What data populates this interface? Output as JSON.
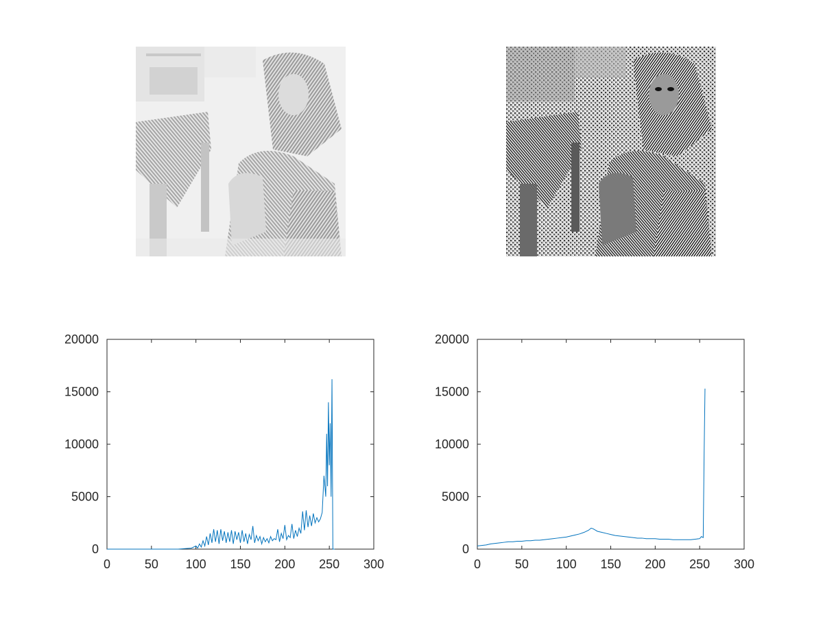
{
  "images": [
    {
      "name": "original-grayscale-photo",
      "description_visible": ""
    },
    {
      "name": "processed-edge-enhanced-photo",
      "description_visible": ""
    }
  ],
  "colors": {
    "line": "#0072bd",
    "axis": "#262626",
    "background": "#ffffff"
  },
  "chart_data": [
    {
      "type": "line",
      "title": "",
      "xlabel": "",
      "ylabel": "",
      "xlim": [
        0,
        300
      ],
      "ylim": [
        0,
        20000
      ],
      "x_ticks": [
        0,
        50,
        100,
        150,
        200,
        250,
        300
      ],
      "y_ticks": [
        0,
        5000,
        10000,
        15000,
        20000
      ],
      "x_tick_labels": [
        "0",
        "50",
        "100",
        "150",
        "200",
        "250",
        "300"
      ],
      "y_tick_labels": [
        "0",
        "5000",
        "10000",
        "15000",
        "20000"
      ],
      "grid": false,
      "series": [
        {
          "x": [
            0,
            80,
            95,
            100,
            102,
            104,
            106,
            108,
            110,
            112,
            114,
            116,
            118,
            120,
            122,
            124,
            126,
            128,
            130,
            132,
            134,
            136,
            138,
            140,
            142,
            144,
            146,
            148,
            150,
            152,
            154,
            156,
            158,
            160,
            162,
            164,
            166,
            168,
            170,
            172,
            174,
            176,
            178,
            180,
            182,
            184,
            186,
            188,
            190,
            192,
            194,
            196,
            198,
            200,
            202,
            204,
            206,
            208,
            210,
            212,
            214,
            216,
            218,
            220,
            222,
            224,
            226,
            228,
            230,
            232,
            234,
            236,
            238,
            240,
            242,
            244,
            246,
            247,
            248,
            249,
            250,
            251,
            252,
            253,
            254,
            255,
            256
          ],
          "y": [
            0,
            0,
            100,
            300,
            100,
            500,
            200,
            800,
            300,
            1200,
            400,
            1500,
            600,
            1900,
            700,
            1800,
            500,
            1900,
            800,
            1700,
            600,
            1600,
            700,
            1800,
            500,
            1700,
            900,
            1600,
            600,
            1800,
            700,
            1500,
            500,
            1400,
            900,
            2200,
            600,
            1300,
            800,
            1200,
            500,
            1100,
            700,
            1000,
            600,
            1200,
            800,
            1000,
            900,
            1900,
            700,
            1500,
            1000,
            2300,
            900,
            1300,
            1100,
            2400,
            1000,
            1800,
            1200,
            2000,
            1500,
            3600,
            1800,
            3700,
            2100,
            3200,
            2200,
            3400,
            2500,
            3000,
            2600,
            2900,
            3500,
            7000,
            5000,
            11000,
            6000,
            14000,
            8000,
            12000,
            5000,
            16200,
            0,
            0,
            0
          ]
        }
      ]
    },
    {
      "type": "line",
      "title": "",
      "xlabel": "",
      "ylabel": "",
      "xlim": [
        0,
        300
      ],
      "ylim": [
        0,
        20000
      ],
      "x_ticks": [
        0,
        50,
        100,
        150,
        200,
        250,
        300
      ],
      "y_ticks": [
        0,
        5000,
        10000,
        15000,
        20000
      ],
      "x_tick_labels": [
        "0",
        "50",
        "100",
        "150",
        "200",
        "250",
        "300"
      ],
      "y_tick_labels": [
        "0",
        "5000",
        "10000",
        "15000",
        "20000"
      ],
      "grid": false,
      "series": [
        {
          "x": [
            0,
            5,
            10,
            15,
            20,
            25,
            30,
            35,
            40,
            45,
            50,
            55,
            60,
            65,
            70,
            75,
            80,
            85,
            90,
            95,
            100,
            105,
            110,
            115,
            120,
            125,
            128,
            130,
            133,
            135,
            140,
            145,
            150,
            155,
            160,
            165,
            170,
            175,
            180,
            185,
            190,
            195,
            200,
            205,
            210,
            215,
            220,
            225,
            230,
            235,
            240,
            245,
            250,
            252,
            254,
            255,
            256
          ],
          "y": [
            300,
            350,
            400,
            500,
            550,
            600,
            650,
            700,
            700,
            750,
            750,
            800,
            800,
            850,
            850,
            900,
            950,
            1000,
            1050,
            1100,
            1150,
            1250,
            1350,
            1450,
            1600,
            1800,
            2000,
            1950,
            1800,
            1700,
            1600,
            1500,
            1400,
            1300,
            1250,
            1200,
            1150,
            1100,
            1050,
            1050,
            1000,
            1000,
            1000,
            950,
            950,
            950,
            900,
            900,
            900,
            900,
            900,
            950,
            1000,
            1200,
            1100,
            9000,
            15300
          ]
        }
      ]
    }
  ]
}
